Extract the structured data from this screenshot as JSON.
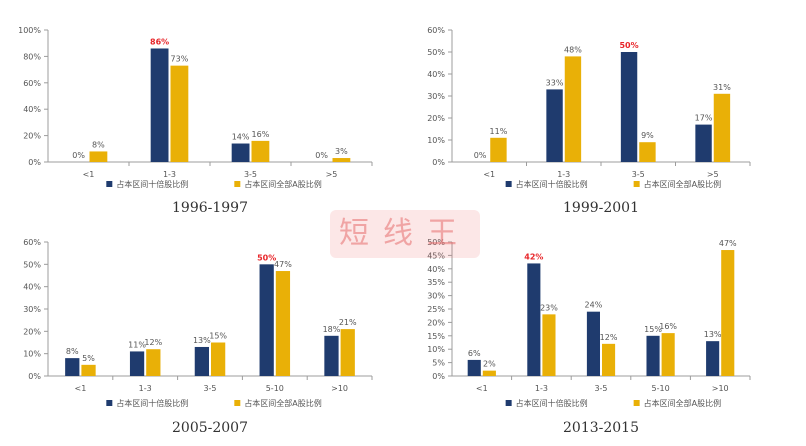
{
  "colors": {
    "blue": "#1f3b6e",
    "gold": "#e9b007",
    "highlight": "#e8262a",
    "axis": "#9c9c9c",
    "text": "#555555"
  },
  "chart_data": [
    {
      "type": "bar",
      "title": "1996-1997",
      "categories": [
        "<1",
        "1-3",
        "3-5",
        ">5"
      ],
      "ylim": [
        0,
        100
      ],
      "yticks": [
        "0%",
        "20%",
        "40%",
        "60%",
        "80%",
        "100%"
      ],
      "series": [
        {
          "name": "占本区间十倍股比例",
          "values": [
            0,
            86,
            14,
            0
          ],
          "labels": [
            "0%",
            "86%",
            "14%",
            "0%"
          ]
        },
        {
          "name": "占本区间全部A股比例",
          "values": [
            8,
            73,
            16,
            3
          ],
          "labels": [
            "8%",
            "73%",
            "16%",
            "3%"
          ]
        }
      ],
      "highlight_label": "86%",
      "legend": "bottom"
    },
    {
      "type": "bar",
      "title": "1999-2001",
      "categories": [
        "<1",
        "1-3",
        "3-5",
        ">5"
      ],
      "ylim": [
        0,
        60
      ],
      "yticks": [
        "0%",
        "10%",
        "20%",
        "30%",
        "40%",
        "50%",
        "60%"
      ],
      "series": [
        {
          "name": "占本区间十倍股比例",
          "values": [
            0,
            33,
            50,
            17
          ],
          "labels": [
            "0%",
            "33%",
            "50%",
            "17%"
          ]
        },
        {
          "name": "占本区间全部A股比例",
          "values": [
            11,
            48,
            9,
            31
          ],
          "labels": [
            "11%",
            "48%",
            "9%",
            "31%"
          ]
        }
      ],
      "highlight_label": "50%",
      "legend": "bottom"
    },
    {
      "type": "bar",
      "title": "2005-2007",
      "categories": [
        "<1",
        "1-3",
        "3-5",
        "5-10",
        ">10"
      ],
      "ylim": [
        0,
        60
      ],
      "yticks": [
        "0%",
        "10%",
        "20%",
        "30%",
        "40%",
        "50%",
        "60%"
      ],
      "series": [
        {
          "name": "占本区间十倍股比例",
          "values": [
            8,
            11,
            13,
            50,
            18
          ],
          "labels": [
            "8%",
            "11%",
            "13%",
            "50%",
            "18%"
          ]
        },
        {
          "name": "占本区间全部A股比例",
          "values": [
            5,
            12,
            15,
            47,
            21
          ],
          "labels": [
            "5%",
            "12%",
            "15%",
            "47%",
            "21%"
          ]
        }
      ],
      "highlight_label": "50%",
      "legend": "bottom"
    },
    {
      "type": "bar",
      "title": "2013-2015",
      "categories": [
        "<1",
        "1-3",
        "3-5",
        "5-10",
        ">10"
      ],
      "ylim": [
        0,
        50
      ],
      "yticks": [
        "0%",
        "5%",
        "10%",
        "15%",
        "20%",
        "25%",
        "30%",
        "35%",
        "40%",
        "45%",
        "50%"
      ],
      "series": [
        {
          "name": "占本区间十倍股比例",
          "values": [
            6,
            42,
            24,
            15,
            13
          ],
          "labels": [
            "6%",
            "42%",
            "24%",
            "15%",
            "13%"
          ]
        },
        {
          "name": "占本区间全部A股比例",
          "values": [
            2,
            23,
            12,
            16,
            47
          ],
          "labels": [
            "2%",
            "23%",
            "12%",
            "16%",
            "47%"
          ]
        }
      ],
      "highlight_label": "42%",
      "legend": "bottom"
    }
  ],
  "watermark": "短线王"
}
